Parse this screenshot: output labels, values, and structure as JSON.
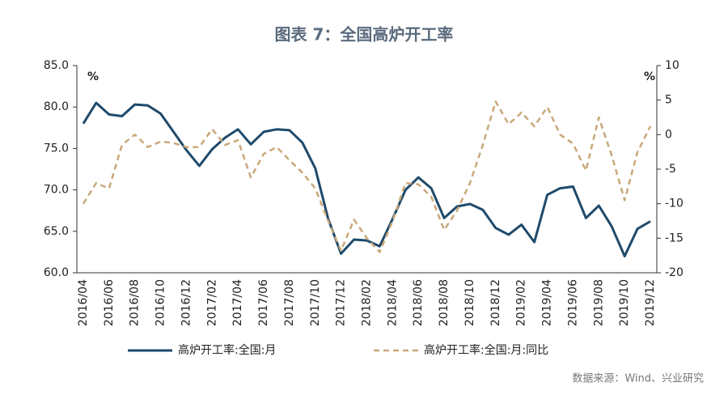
{
  "chart_data": {
    "type": "line",
    "title": "图表 7：全国高炉开工率",
    "source": "数据来源：Wind、兴业研究",
    "y_unit": "%",
    "y2_unit": "%",
    "categories": [
      "2016/04",
      null,
      "2016/06",
      null,
      "2016/08",
      null,
      "2016/10",
      null,
      "2016/12",
      null,
      "2017/02",
      null,
      "2017/04",
      null,
      "2017/06",
      null,
      "2017/08",
      null,
      "2017/10",
      null,
      "2017/12",
      null,
      "2018/02",
      null,
      "2018/04",
      null,
      "2018/06",
      null,
      "2018/08",
      null,
      "2018/10",
      null,
      "2018/12",
      null,
      "2019/02",
      null,
      "2019/04",
      null,
      "2019/06",
      null,
      "2019/08",
      null,
      "2019/10",
      null,
      "2019/12"
    ],
    "series": [
      {
        "name": "高炉开工率:全国:月",
        "color": "#1f4a6b",
        "dash": false,
        "values": [
          78.0,
          80.5,
          79.1,
          78.9,
          80.3,
          80.2,
          79.2,
          77.0,
          74.8,
          72.9,
          74.9,
          76.3,
          77.3,
          75.5,
          77.0,
          77.3,
          77.2,
          75.7,
          72.6,
          66.5,
          62.3,
          64.0,
          63.9,
          63.2,
          66.5,
          70.0,
          71.5,
          70.2,
          66.6,
          68.0,
          68.3,
          67.6,
          65.4,
          64.6,
          65.8,
          63.7,
          69.4,
          70.2,
          70.4,
          66.6,
          68.1,
          65.6,
          62.0,
          65.3,
          66.2
        ]
      },
      {
        "name": "高炉开工率:全国:月:同比",
        "color": "#c9a87a",
        "dash": true,
        "axis": "y2",
        "values": [
          -10,
          -7,
          -7.8,
          -1.5,
          0,
          -1.8,
          -1,
          -1.2,
          -1.8,
          -1.8,
          0.8,
          -1.5,
          -0.8,
          -6.2,
          -2.8,
          -1.8,
          -3.7,
          -5.5,
          -7.8,
          -12.5,
          -16.8,
          -12.3,
          -15,
          -17,
          -12.5,
          -7,
          -7.2,
          -9,
          -13.8,
          -11,
          -7,
          -1.5,
          4.8,
          1.5,
          3.2,
          1.2,
          4,
          0,
          -1.3,
          -5.2,
          2.5,
          -3,
          -9.5,
          -2.5,
          1.2
        ]
      }
    ],
    "ylim": [
      60,
      85
    ],
    "yticks": [
      {
        "value": 60,
        "label": "60.0"
      },
      {
        "value": 65,
        "label": "65.0"
      },
      {
        "value": 70,
        "label": "70.0"
      },
      {
        "value": 75,
        "label": "75.0"
      },
      {
        "value": 80,
        "label": "80.0"
      },
      {
        "value": 85,
        "label": "85.0"
      }
    ],
    "y2lim": [
      -20,
      10
    ],
    "y2ticks": [
      -20,
      -15,
      -10,
      -5,
      0,
      5,
      10
    ],
    "grid": false,
    "legend": "bottom"
  }
}
